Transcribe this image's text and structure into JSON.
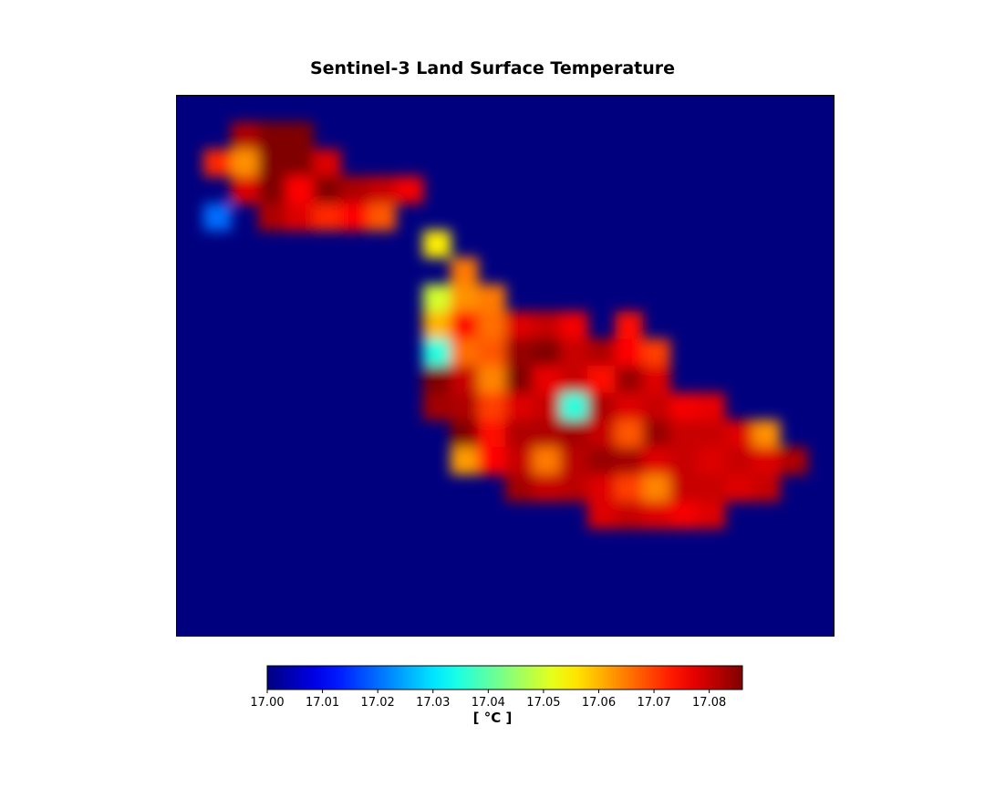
{
  "chart_data": {
    "type": "heatmap",
    "title": "Sentinel-3 Land Surface Temperature",
    "colormap": "jet",
    "colors": {
      "background_value_color": "#00007f"
    },
    "colorbar": {
      "label": "[ °C ]",
      "vmin": 17.0,
      "vmax": 17.086,
      "ticks": [
        17.0,
        17.01,
        17.02,
        17.03,
        17.04,
        17.05,
        17.06,
        17.07,
        17.08
      ],
      "tick_labels": [
        "17.00",
        "17.01",
        "17.02",
        "17.03",
        "17.04",
        "17.05",
        "17.06",
        "17.07",
        "17.08"
      ]
    },
    "grid": false,
    "axes_visible": false,
    "raster_shape": [
      20,
      24
    ],
    "values": [
      [
        17.0,
        17.0,
        17.0,
        17.0,
        17.0,
        17.0,
        17.0,
        17.0,
        17.0,
        17.0,
        17.0,
        17.0,
        17.0,
        17.0,
        17.0,
        17.0,
        17.0,
        17.0,
        17.0,
        17.0,
        17.0,
        17.0,
        17.0,
        17.0
      ],
      [
        17.0,
        17.0,
        17.082,
        17.086,
        17.086,
        17.0,
        17.0,
        17.0,
        17.0,
        17.0,
        17.0,
        17.0,
        17.0,
        17.0,
        17.0,
        17.0,
        17.0,
        17.0,
        17.0,
        17.0,
        17.0,
        17.0,
        17.0,
        17.0
      ],
      [
        17.0,
        17.072,
        17.063,
        17.086,
        17.086,
        17.078,
        17.0,
        17.0,
        17.0,
        17.0,
        17.0,
        17.0,
        17.0,
        17.0,
        17.0,
        17.0,
        17.0,
        17.0,
        17.0,
        17.0,
        17.0,
        17.0,
        17.0,
        17.0
      ],
      [
        17.0,
        17.0,
        17.078,
        17.086,
        17.075,
        17.086,
        17.082,
        17.08,
        17.076,
        17.0,
        17.0,
        17.0,
        17.0,
        17.0,
        17.0,
        17.0,
        17.0,
        17.0,
        17.0,
        17.0,
        17.0,
        17.0,
        17.0,
        17.0
      ],
      [
        17.0,
        17.02,
        17.0,
        17.082,
        17.078,
        17.072,
        17.075,
        17.068,
        17.0,
        17.0,
        17.0,
        17.0,
        17.0,
        17.0,
        17.0,
        17.0,
        17.0,
        17.0,
        17.0,
        17.0,
        17.0,
        17.0,
        17.0,
        17.0
      ],
      [
        17.0,
        17.0,
        17.0,
        17.0,
        17.0,
        17.0,
        17.0,
        17.0,
        17.0,
        17.055,
        17.0,
        17.0,
        17.0,
        17.0,
        17.0,
        17.0,
        17.0,
        17.0,
        17.0,
        17.0,
        17.0,
        17.0,
        17.0,
        17.0
      ],
      [
        17.0,
        17.0,
        17.0,
        17.0,
        17.0,
        17.0,
        17.0,
        17.0,
        17.0,
        17.0,
        17.065,
        17.0,
        17.0,
        17.0,
        17.0,
        17.0,
        17.0,
        17.0,
        17.0,
        17.0,
        17.0,
        17.0,
        17.0,
        17.0
      ],
      [
        17.0,
        17.0,
        17.0,
        17.0,
        17.0,
        17.0,
        17.0,
        17.0,
        17.0,
        17.05,
        17.063,
        17.065,
        17.0,
        17.0,
        17.0,
        17.0,
        17.0,
        17.0,
        17.0,
        17.0,
        17.0,
        17.0,
        17.0,
        17.0
      ],
      [
        17.0,
        17.0,
        17.0,
        17.0,
        17.0,
        17.0,
        17.0,
        17.0,
        17.0,
        17.06,
        17.075,
        17.066,
        17.078,
        17.08,
        17.076,
        17.0,
        17.074,
        17.0,
        17.0,
        17.0,
        17.0,
        17.0,
        17.0,
        17.0
      ],
      [
        17.0,
        17.0,
        17.0,
        17.0,
        17.0,
        17.0,
        17.0,
        17.0,
        17.0,
        17.035,
        17.066,
        17.068,
        17.084,
        17.086,
        17.08,
        17.082,
        17.075,
        17.07,
        17.0,
        17.0,
        17.0,
        17.0,
        17.0,
        17.0
      ],
      [
        17.0,
        17.0,
        17.0,
        17.0,
        17.0,
        17.0,
        17.0,
        17.0,
        17.0,
        17.086,
        17.08,
        17.064,
        17.086,
        17.077,
        17.08,
        17.074,
        17.084,
        17.078,
        17.0,
        17.0,
        17.0,
        17.0,
        17.0,
        17.0
      ],
      [
        17.0,
        17.0,
        17.0,
        17.0,
        17.0,
        17.0,
        17.0,
        17.0,
        17.0,
        17.083,
        17.082,
        17.07,
        17.078,
        17.08,
        17.035,
        17.082,
        17.078,
        17.08,
        17.076,
        17.077,
        17.0,
        17.0,
        17.0,
        17.0
      ],
      [
        17.0,
        17.0,
        17.0,
        17.0,
        17.0,
        17.0,
        17.0,
        17.0,
        17.0,
        17.0,
        17.086,
        17.074,
        17.082,
        17.082,
        17.083,
        17.08,
        17.068,
        17.084,
        17.08,
        17.08,
        17.078,
        17.063,
        17.0,
        17.0
      ],
      [
        17.0,
        17.0,
        17.0,
        17.0,
        17.0,
        17.0,
        17.0,
        17.0,
        17.0,
        17.0,
        17.062,
        17.075,
        17.08,
        17.065,
        17.081,
        17.084,
        17.083,
        17.078,
        17.08,
        17.078,
        17.08,
        17.078,
        17.082,
        17.0
      ],
      [
        17.0,
        17.0,
        17.0,
        17.0,
        17.0,
        17.0,
        17.0,
        17.0,
        17.0,
        17.0,
        17.0,
        17.0,
        17.083,
        17.08,
        17.081,
        17.078,
        17.07,
        17.064,
        17.08,
        17.08,
        17.078,
        17.08,
        17.0,
        17.0
      ],
      [
        17.0,
        17.0,
        17.0,
        17.0,
        17.0,
        17.0,
        17.0,
        17.0,
        17.0,
        17.0,
        17.0,
        17.0,
        17.0,
        17.0,
        17.0,
        17.078,
        17.08,
        17.078,
        17.076,
        17.078,
        17.0,
        17.0,
        17.0,
        17.0
      ],
      [
        17.0,
        17.0,
        17.0,
        17.0,
        17.0,
        17.0,
        17.0,
        17.0,
        17.0,
        17.0,
        17.0,
        17.0,
        17.0,
        17.0,
        17.0,
        17.0,
        17.0,
        17.0,
        17.0,
        17.0,
        17.0,
        17.0,
        17.0,
        17.0
      ],
      [
        17.0,
        17.0,
        17.0,
        17.0,
        17.0,
        17.0,
        17.0,
        17.0,
        17.0,
        17.0,
        17.0,
        17.0,
        17.0,
        17.0,
        17.0,
        17.0,
        17.0,
        17.0,
        17.0,
        17.0,
        17.0,
        17.0,
        17.0,
        17.0
      ],
      [
        17.0,
        17.0,
        17.0,
        17.0,
        17.0,
        17.0,
        17.0,
        17.0,
        17.0,
        17.0,
        17.0,
        17.0,
        17.0,
        17.0,
        17.0,
        17.0,
        17.0,
        17.0,
        17.0,
        17.0,
        17.0,
        17.0,
        17.0,
        17.0
      ],
      [
        17.0,
        17.0,
        17.0,
        17.0,
        17.0,
        17.0,
        17.0,
        17.0,
        17.0,
        17.0,
        17.0,
        17.0,
        17.0,
        17.0,
        17.0,
        17.0,
        17.0,
        17.0,
        17.0,
        17.0,
        17.0,
        17.0,
        17.0,
        17.0
      ]
    ]
  }
}
